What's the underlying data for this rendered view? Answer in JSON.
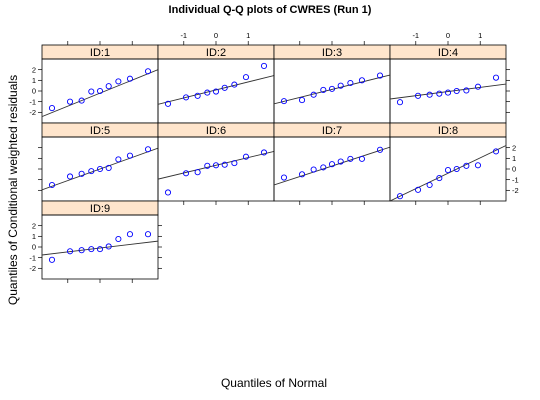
{
  "chart_data": {
    "type": "scatter",
    "title": "Individual Q-Q plots of CWRES (Run 1)",
    "xlabel": "Quantiles of Normal",
    "ylabel": "Quantiles of Conditional weighted residuals",
    "xlim": [
      -1.8,
      1.8
    ],
    "ylim": [
      -3,
      3
    ],
    "x_ticks": [
      -1,
      0,
      1
    ],
    "y_ticks": [
      -2,
      -1,
      0,
      1,
      2
    ],
    "grid": false,
    "point_color": "#0000ff",
    "strip_color": "#ffe5cc",
    "panels": [
      {
        "id": "ID:1",
        "x": [
          -1.49,
          -0.93,
          -0.57,
          -0.27,
          0.0,
          0.27,
          0.57,
          0.93,
          1.49
        ],
        "y": [
          -1.6,
          -1.0,
          -0.9,
          -0.05,
          0.0,
          0.45,
          0.9,
          1.15,
          1.85
        ],
        "line": [
          [
            -1.8,
            -2.4
          ],
          [
            1.8,
            2.0
          ]
        ]
      },
      {
        "id": "ID:2",
        "x": [
          -1.49,
          -0.93,
          -0.57,
          -0.27,
          0.0,
          0.27,
          0.57,
          0.93,
          1.49
        ],
        "y": [
          -1.2,
          -0.6,
          -0.45,
          -0.15,
          -0.05,
          0.3,
          0.6,
          1.3,
          2.35
        ],
        "line": [
          [
            -1.8,
            -1.25
          ],
          [
            1.8,
            1.45
          ]
        ]
      },
      {
        "id": "ID:3",
        "x": [
          -1.49,
          -0.93,
          -0.57,
          -0.27,
          0.0,
          0.27,
          0.57,
          0.93,
          1.49
        ],
        "y": [
          -0.95,
          -0.85,
          -0.35,
          0.1,
          0.2,
          0.5,
          0.75,
          1.0,
          1.45
        ],
        "line": [
          [
            -1.8,
            -1.2
          ],
          [
            1.8,
            1.5
          ]
        ]
      },
      {
        "id": "ID:4",
        "x": [
          -1.49,
          -0.93,
          -0.57,
          -0.27,
          0.0,
          0.27,
          0.57,
          0.93,
          1.49
        ],
        "y": [
          -1.05,
          -0.45,
          -0.35,
          -0.25,
          -0.15,
          0.0,
          0.05,
          0.4,
          1.25
        ],
        "line": [
          [
            -1.8,
            -0.75
          ],
          [
            1.8,
            0.65
          ]
        ]
      },
      {
        "id": "ID:5",
        "x": [
          -1.49,
          -0.93,
          -0.57,
          -0.27,
          0.0,
          0.27,
          0.57,
          0.93,
          1.49
        ],
        "y": [
          -1.5,
          -0.7,
          -0.45,
          -0.2,
          0.0,
          0.1,
          0.9,
          1.25,
          1.85
        ],
        "line": [
          [
            -1.8,
            -1.95
          ],
          [
            1.8,
            1.95
          ]
        ]
      },
      {
        "id": "ID:6",
        "x": [
          -1.49,
          -0.93,
          -0.57,
          -0.27,
          0.0,
          0.27,
          0.57,
          0.93,
          1.49
        ],
        "y": [
          -2.2,
          -0.4,
          -0.3,
          0.3,
          0.35,
          0.4,
          0.55,
          1.15,
          1.55
        ],
        "line": [
          [
            -1.8,
            -0.95
          ],
          [
            1.8,
            1.65
          ]
        ]
      },
      {
        "id": "ID:7",
        "x": [
          -1.49,
          -0.93,
          -0.57,
          -0.27,
          0.0,
          0.27,
          0.57,
          0.93,
          1.49
        ],
        "y": [
          -0.8,
          -0.5,
          -0.05,
          0.15,
          0.45,
          0.7,
          0.95,
          0.95,
          1.8
        ],
        "line": [
          [
            -1.8,
            -1.5
          ],
          [
            1.8,
            2.05
          ]
        ]
      },
      {
        "id": "ID:8",
        "x": [
          -1.49,
          -0.93,
          -0.57,
          -0.27,
          0.0,
          0.27,
          0.57,
          0.93,
          1.49
        ],
        "y": [
          -2.55,
          -1.95,
          -1.5,
          -0.85,
          -0.1,
          0.0,
          0.3,
          0.35,
          1.65
        ],
        "line": [
          [
            -1.8,
            -3.0
          ],
          [
            1.8,
            2.2
          ]
        ]
      },
      {
        "id": "ID:9",
        "x": [
          -1.49,
          -0.93,
          -0.57,
          -0.27,
          0.0,
          0.27,
          0.57,
          0.93,
          1.49
        ],
        "y": [
          -1.2,
          -0.4,
          -0.3,
          -0.2,
          -0.2,
          0.05,
          0.75,
          1.2,
          1.2
        ],
        "line": [
          [
            -1.8,
            -0.75
          ],
          [
            1.8,
            0.55
          ]
        ]
      }
    ]
  }
}
